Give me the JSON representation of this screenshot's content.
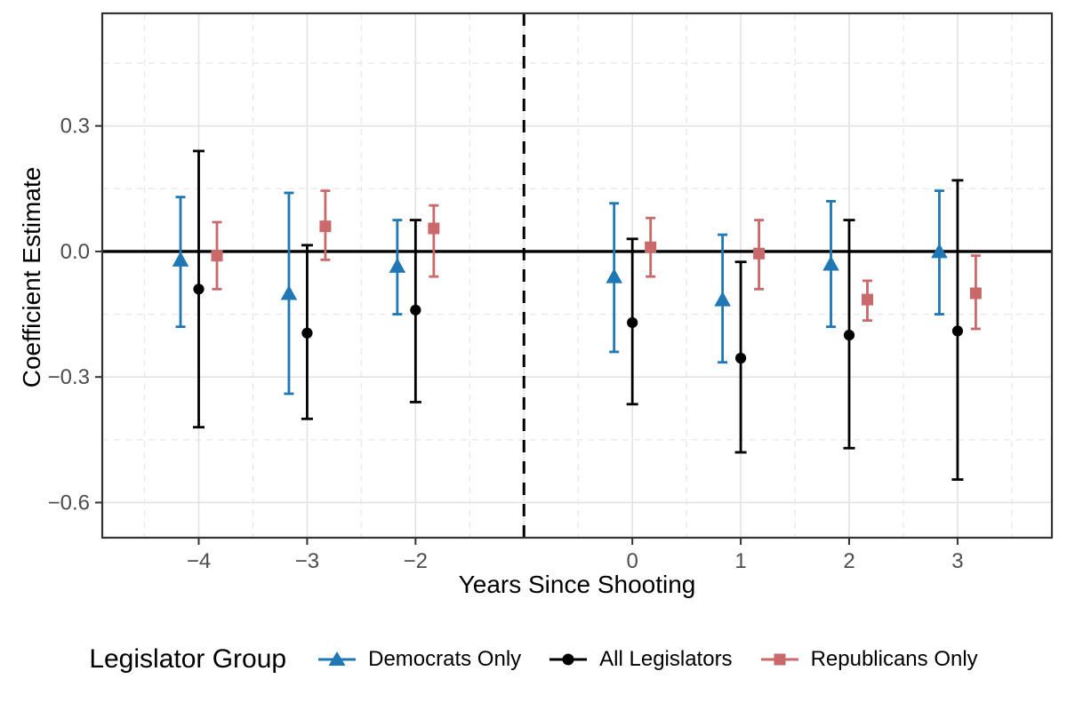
{
  "figure_title": "",
  "chart_data": {
    "type": "pointrange_errorbar",
    "title": "",
    "xlabel": "Years Since Shooting",
    "ylabel": "Coefficient Estimate",
    "legend_title": "Legislator Group",
    "legend_position": "bottom",
    "xlim": [
      -4.89,
      3.87
    ],
    "ylim": [
      -0.684,
      0.569
    ],
    "x_ticks": [
      {
        "value": -4,
        "label": "−4"
      },
      {
        "value": -3,
        "label": "−3"
      },
      {
        "value": -2,
        "label": "−2"
      },
      {
        "value": 0,
        "label": "0"
      },
      {
        "value": 1,
        "label": "1"
      },
      {
        "value": 2,
        "label": "2"
      },
      {
        "value": 3,
        "label": "3"
      }
    ],
    "y_ticks": [
      {
        "value": 0.3,
        "label": "0.3"
      },
      {
        "value": 0.0,
        "label": "0.0"
      },
      {
        "value": -0.3,
        "label": "−0.3"
      },
      {
        "value": -0.6,
        "label": "−0.6"
      }
    ],
    "grid": {
      "on": true,
      "major_x": [
        -4,
        -3,
        -2,
        -1,
        0,
        1,
        2,
        3
      ],
      "minor_x": [
        -4.5,
        -3.5,
        -2.5,
        -1.5,
        -0.5,
        0.5,
        1.5,
        2.5,
        3.5
      ],
      "major_y": [
        0.3,
        0.0,
        -0.3,
        -0.6
      ],
      "minor_y": [
        0.45,
        0.15,
        -0.15,
        -0.45
      ]
    },
    "zero_line_y": 0.0,
    "event_line_x": -1,
    "dodge_offset": 0.168,
    "colors": {
      "democrats": "#1F77B4",
      "all": "#000000",
      "republicans": "#C9696B",
      "panel_border": "#333333",
      "grid_major": "#E3E3E3",
      "grid_minor": "#E9E9E9",
      "tick_text": "#4d4d4d"
    },
    "series": [
      {
        "name": "Democrats Only",
        "marker": "triangle",
        "color": "#1F77B4",
        "offset": -0.168,
        "points": [
          {
            "x": -4,
            "est": -0.02,
            "lo": -0.18,
            "hi": 0.13
          },
          {
            "x": -3,
            "est": -0.1,
            "lo": -0.34,
            "hi": 0.14
          },
          {
            "x": -2,
            "est": -0.035,
            "lo": -0.15,
            "hi": 0.075
          },
          {
            "x": 0,
            "est": -0.06,
            "lo": -0.24,
            "hi": 0.115
          },
          {
            "x": 1,
            "est": -0.115,
            "lo": -0.265,
            "hi": 0.04
          },
          {
            "x": 2,
            "est": -0.03,
            "lo": -0.18,
            "hi": 0.12
          },
          {
            "x": 3,
            "est": 0.0,
            "lo": -0.15,
            "hi": 0.145
          }
        ]
      },
      {
        "name": "All Legislators",
        "marker": "circle",
        "color": "#000000",
        "offset": 0,
        "points": [
          {
            "x": -4,
            "est": -0.09,
            "lo": -0.42,
            "hi": 0.24
          },
          {
            "x": -3,
            "est": -0.195,
            "lo": -0.4,
            "hi": 0.015
          },
          {
            "x": -2,
            "est": -0.14,
            "lo": -0.36,
            "hi": 0.075
          },
          {
            "x": 0,
            "est": -0.17,
            "lo": -0.365,
            "hi": 0.03
          },
          {
            "x": 1,
            "est": -0.255,
            "lo": -0.48,
            "hi": -0.025
          },
          {
            "x": 2,
            "est": -0.2,
            "lo": -0.47,
            "hi": 0.075
          },
          {
            "x": 3,
            "est": -0.19,
            "lo": -0.545,
            "hi": 0.17
          }
        ]
      },
      {
        "name": "Republicans Only",
        "marker": "square",
        "color": "#C9696B",
        "offset": 0.168,
        "points": [
          {
            "x": -4,
            "est": -0.01,
            "lo": -0.09,
            "hi": 0.07
          },
          {
            "x": -3,
            "est": 0.06,
            "lo": -0.02,
            "hi": 0.145
          },
          {
            "x": -2,
            "est": 0.055,
            "lo": -0.06,
            "hi": 0.11
          },
          {
            "x": 0,
            "est": 0.01,
            "lo": -0.06,
            "hi": 0.08
          },
          {
            "x": 1,
            "est": -0.005,
            "lo": -0.09,
            "hi": 0.075
          },
          {
            "x": 2,
            "est": -0.115,
            "lo": -0.165,
            "hi": -0.07
          },
          {
            "x": 3,
            "est": -0.1,
            "lo": -0.185,
            "hi": -0.01
          }
        ]
      }
    ]
  }
}
